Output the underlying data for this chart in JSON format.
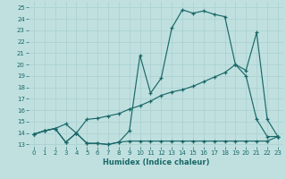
{
  "title": "",
  "xlabel": "Humidex (Indice chaleur)",
  "ylabel": "",
  "bg_color": "#c0e0e0",
  "line_color": "#1a6868",
  "grid_color": "#a8d0d0",
  "xlim": [
    -0.5,
    23.5
  ],
  "ylim": [
    12.8,
    25.5
  ],
  "xticks": [
    0,
    1,
    2,
    3,
    4,
    5,
    6,
    7,
    8,
    9,
    10,
    11,
    12,
    13,
    14,
    15,
    16,
    17,
    18,
    19,
    20,
    21,
    22,
    23
  ],
  "yticks": [
    13,
    14,
    15,
    16,
    17,
    18,
    19,
    20,
    21,
    22,
    23,
    24,
    25
  ],
  "series1_x": [
    0,
    1,
    2,
    3,
    4,
    5,
    6,
    7,
    8,
    9,
    10,
    11,
    12,
    13,
    14,
    15,
    16,
    17,
    18,
    19,
    20,
    21,
    22,
    23
  ],
  "series1_y": [
    13.9,
    14.2,
    14.4,
    13.2,
    14.0,
    13.1,
    13.1,
    13.0,
    13.2,
    13.3,
    13.3,
    13.3,
    13.3,
    13.3,
    13.3,
    13.3,
    13.3,
    13.3,
    13.3,
    13.3,
    13.3,
    13.3,
    13.3,
    13.7
  ],
  "series2_x": [
    0,
    1,
    2,
    3,
    4,
    5,
    6,
    7,
    8,
    9,
    10,
    11,
    12,
    13,
    14,
    15,
    16,
    17,
    18,
    19,
    20,
    21,
    22,
    23
  ],
  "series2_y": [
    13.9,
    14.2,
    14.4,
    14.8,
    14.0,
    15.2,
    15.3,
    15.5,
    15.7,
    16.1,
    16.4,
    16.8,
    17.3,
    17.6,
    17.8,
    18.1,
    18.5,
    18.9,
    19.3,
    20.0,
    19.0,
    15.2,
    13.7,
    13.7
  ],
  "series3_x": [
    0,
    1,
    2,
    3,
    4,
    5,
    6,
    7,
    8,
    9,
    10,
    11,
    12,
    13,
    14,
    15,
    16,
    17,
    18,
    19,
    20,
    21,
    22,
    23
  ],
  "series3_y": [
    13.9,
    14.2,
    14.4,
    13.2,
    14.0,
    13.1,
    13.1,
    13.0,
    13.2,
    14.2,
    20.8,
    17.5,
    18.8,
    23.2,
    24.8,
    24.5,
    24.7,
    24.4,
    24.2,
    20.0,
    19.5,
    22.8,
    15.2,
    13.7
  ]
}
